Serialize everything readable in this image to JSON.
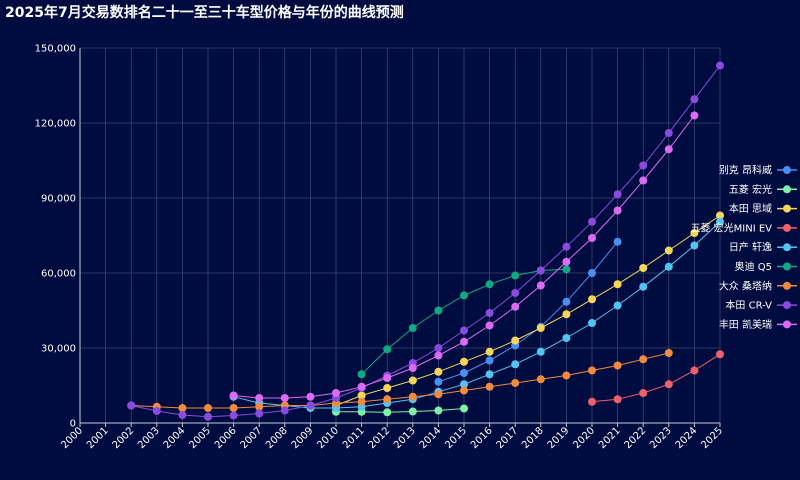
{
  "chart_data": {
    "type": "line",
    "title": "2025年7月交易数排名二十一至三十车型价格与年份的曲线预测",
    "xlabel": "",
    "ylabel": "",
    "x": [
      "2000",
      "2001",
      "2002",
      "2003",
      "2004",
      "2005",
      "2006",
      "2007",
      "2008",
      "2009",
      "2010",
      "2011",
      "2012",
      "2013",
      "2014",
      "2015",
      "2016",
      "2017",
      "2018",
      "2019",
      "2020",
      "2021",
      "2022",
      "2023",
      "2024",
      "2025"
    ],
    "ylim": [
      0,
      150000
    ],
    "yticks": [
      "0",
      "30,000",
      "60,000",
      "90,000",
      "120,000",
      "150,000"
    ],
    "grid": true,
    "legend_position": "right",
    "background": "#000c3f",
    "series": [
      {
        "name": "别克 昂科威",
        "color": "#4a8ef0",
        "values": [
          null,
          null,
          null,
          null,
          null,
          null,
          null,
          null,
          null,
          null,
          null,
          null,
          null,
          null,
          16500,
          20000,
          25000,
          31000,
          38500,
          48500,
          60000,
          72500,
          null,
          null,
          null,
          null
        ]
      },
      {
        "name": "五菱 宏光",
        "color": "#7ef0a8",
        "values": [
          null,
          null,
          null,
          null,
          null,
          null,
          null,
          null,
          null,
          null,
          4500,
          4500,
          4300,
          4600,
          5000,
          5800,
          null,
          null,
          null,
          null,
          null,
          null,
          null,
          null,
          null,
          null
        ]
      },
      {
        "name": "本田 思域",
        "color": "#f5d65a",
        "values": [
          null,
          null,
          null,
          null,
          null,
          null,
          null,
          null,
          null,
          null,
          7000,
          11000,
          14000,
          17000,
          20500,
          24500,
          28500,
          33000,
          38000,
          43500,
          49500,
          55500,
          62000,
          69000,
          76000,
          83000
        ]
      },
      {
        "name": "五菱 宏光MINI EV",
        "color": "#f0606a",
        "values": [
          null,
          null,
          null,
          null,
          null,
          null,
          null,
          null,
          null,
          null,
          null,
          null,
          null,
          null,
          null,
          null,
          null,
          null,
          null,
          null,
          8500,
          9500,
          12000,
          15500,
          21000,
          27500
        ]
      },
      {
        "name": "日产 轩逸",
        "color": "#53c4f0",
        "values": [
          null,
          null,
          null,
          null,
          null,
          null,
          10500,
          8000,
          7000,
          6000,
          6000,
          6500,
          8000,
          9500,
          12500,
          15500,
          19500,
          23500,
          28500,
          34000,
          40000,
          47000,
          54500,
          62500,
          71000,
          80500
        ]
      },
      {
        "name": "奥迪 Q5",
        "color": "#0faa82",
        "values": [
          null,
          null,
          null,
          null,
          null,
          null,
          null,
          null,
          null,
          null,
          null,
          19500,
          29500,
          38000,
          45000,
          51000,
          55500,
          59000,
          61000,
          61500,
          null,
          null,
          null,
          null,
          null,
          null
        ]
      },
      {
        "name": "大众 桑塔纳",
        "color": "#f08a3e",
        "values": [
          null,
          null,
          7000,
          6500,
          6000,
          6000,
          6000,
          6500,
          7000,
          7000,
          8000,
          8500,
          9500,
          10500,
          11500,
          13000,
          14500,
          16000,
          17500,
          19000,
          21000,
          23000,
          25500,
          28000,
          null,
          null
        ]
      },
      {
        "name": "本田 CR-V",
        "color": "#8a4ae0",
        "values": [
          null,
          null,
          7000,
          4800,
          3200,
          2500,
          3000,
          3800,
          5000,
          7000,
          10000,
          14000,
          19000,
          24000,
          30000,
          37000,
          44000,
          52000,
          61000,
          70500,
          80500,
          91500,
          103000,
          116000,
          129500,
          143000
        ]
      },
      {
        "name": "丰田 凯美瑞",
        "color": "#dd6af5",
        "values": [
          null,
          null,
          null,
          null,
          null,
          null,
          11000,
          10000,
          10000,
          10500,
          12000,
          14500,
          18000,
          22000,
          27000,
          32500,
          39000,
          46500,
          55000,
          64500,
          74000,
          85000,
          97000,
          109500,
          123000,
          null
        ]
      }
    ]
  }
}
